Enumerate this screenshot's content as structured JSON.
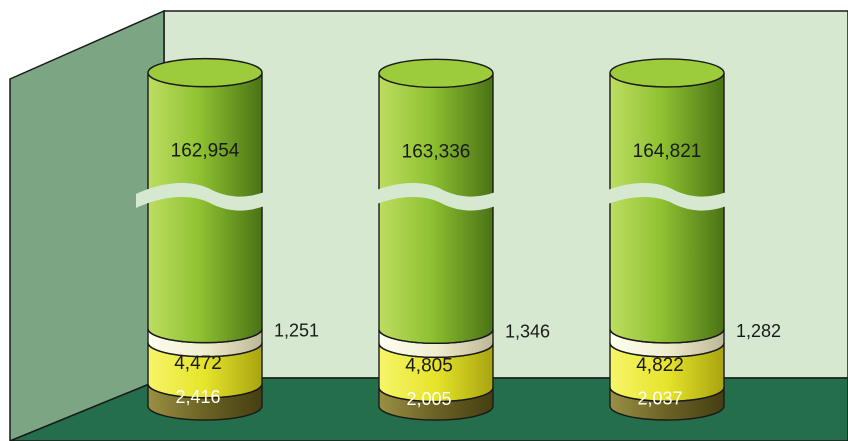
{
  "chart_data": {
    "type": "bar",
    "style": "stacked 3D cylinders with broken (truncated) top segment",
    "categories": [
      "",
      "",
      ""
    ],
    "series": [
      {
        "values": [
          2416,
          2005,
          2037
        ],
        "color": "#6b6224"
      },
      {
        "values": [
          4472,
          4805,
          4822
        ],
        "color": "#e6e42a"
      },
      {
        "values": [
          1251,
          1346,
          1282
        ],
        "color": "#f0edcf"
      },
      {
        "values": [
          162954,
          163336,
          164821
        ],
        "color": "#8fc232"
      }
    ],
    "labels": [
      [
        "2,416",
        "4,472",
        "1,251",
        "162,954"
      ],
      [
        "2,005",
        "4,805",
        "1,346",
        "163,336"
      ],
      [
        "2,037",
        "4,822",
        "1,282",
        "164,821"
      ]
    ],
    "axis_break": true,
    "legend": "none",
    "grid": false
  },
  "colors": {
    "back_wall": "#d6e9d0",
    "side_wall": "#7ca584",
    "floor": "#246e4c",
    "outline": "#1a1a1a"
  }
}
